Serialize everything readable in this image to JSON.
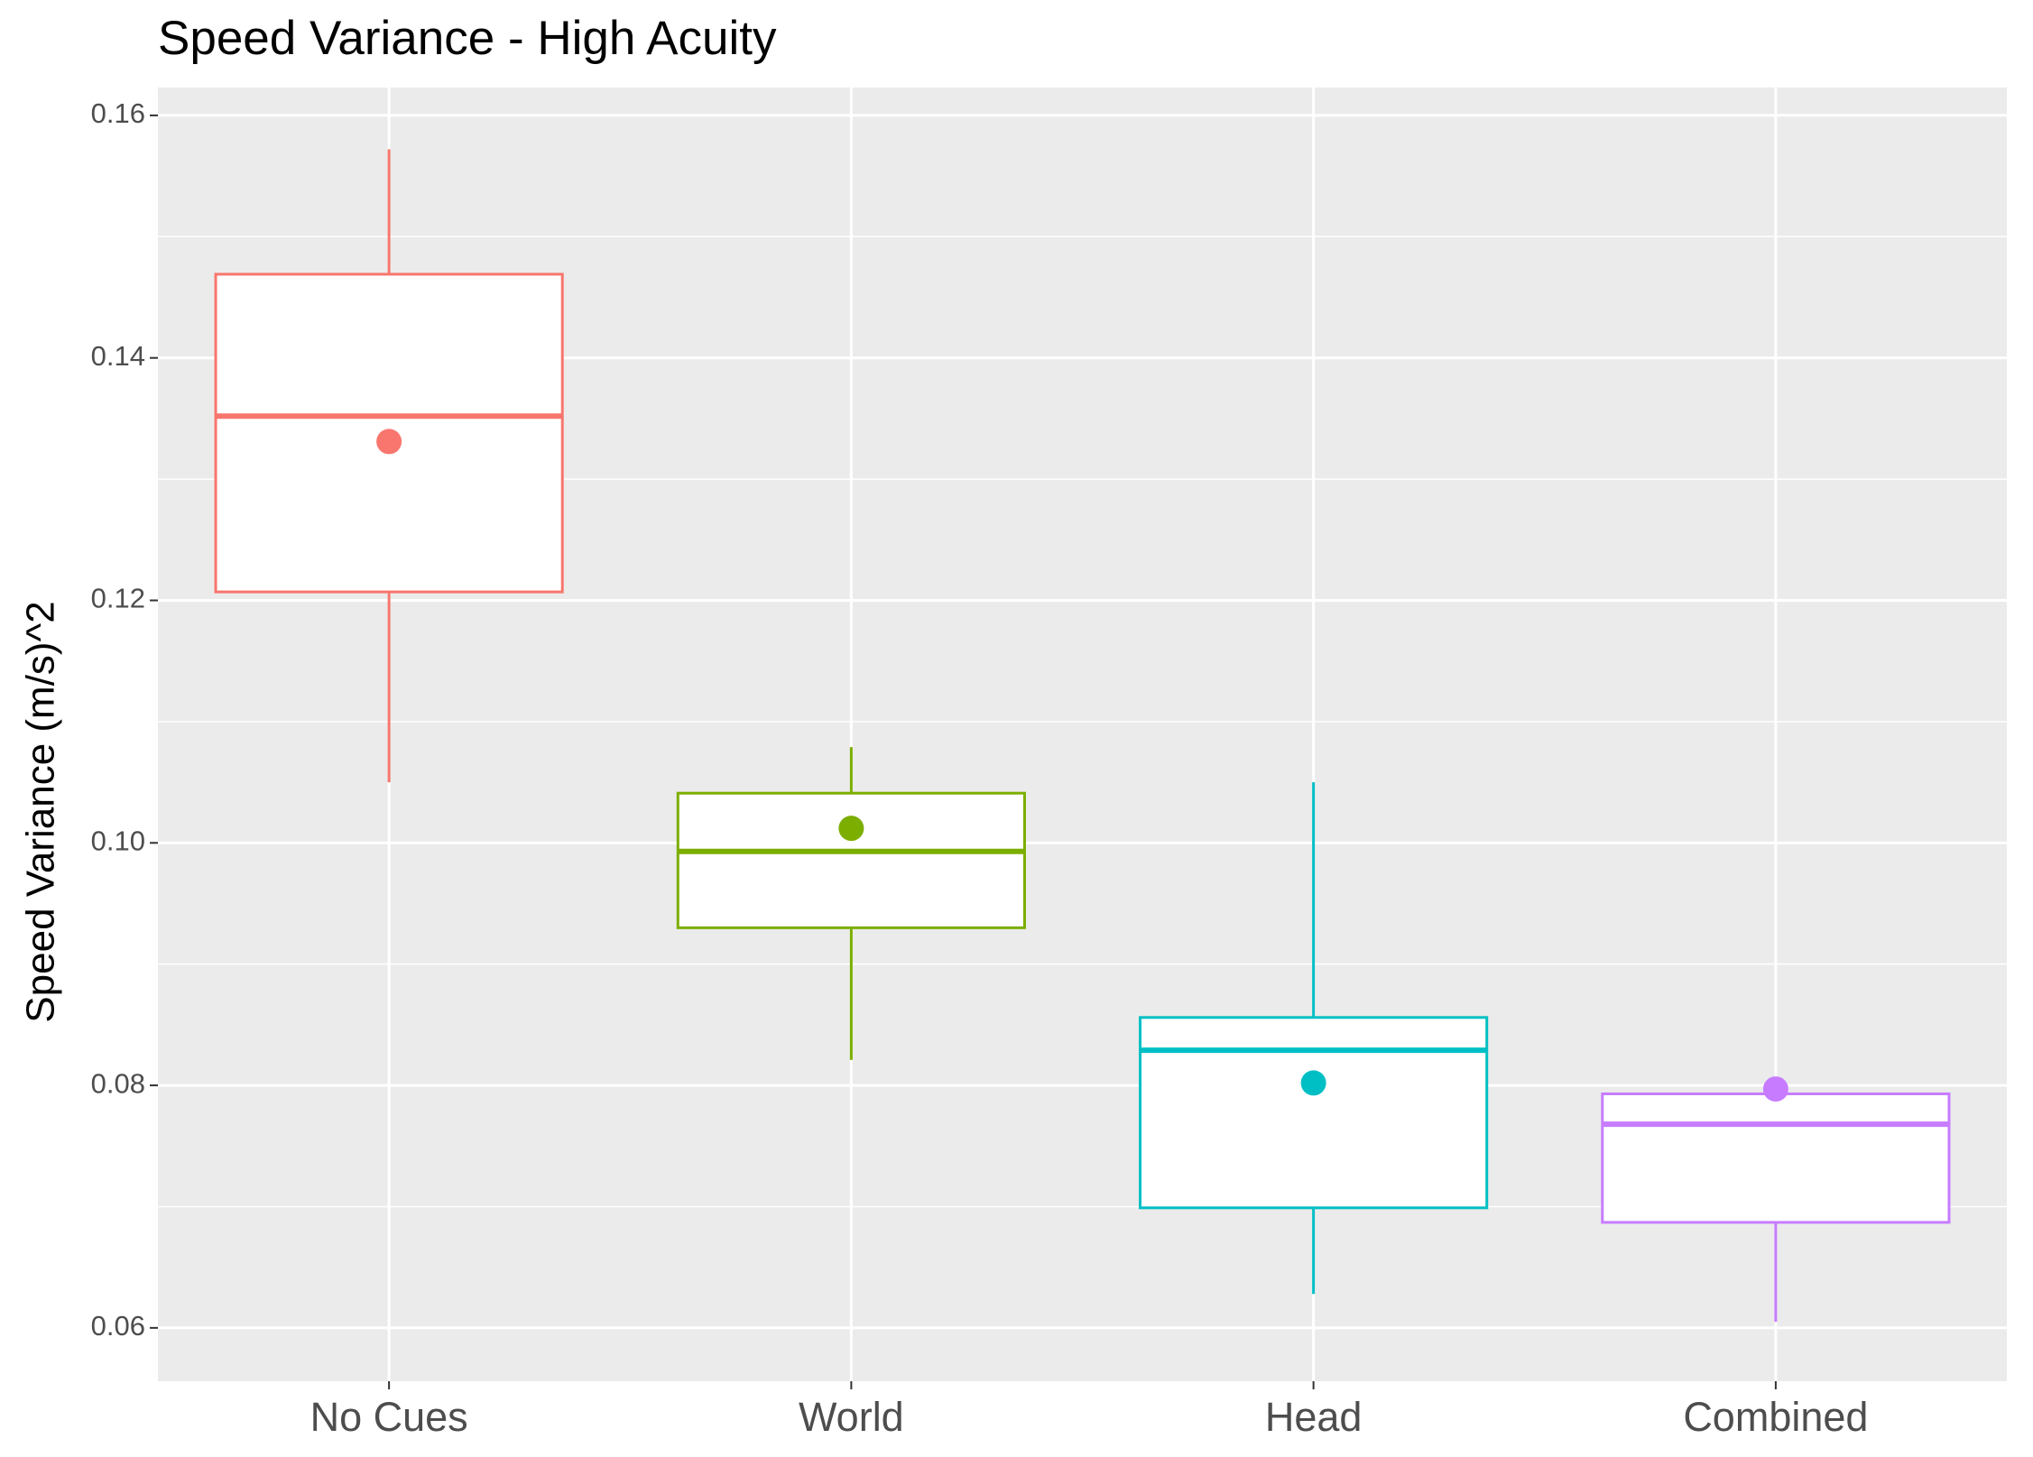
{
  "chart_data": {
    "type": "box",
    "title": "Speed Variance - High Acuity",
    "y_label": "Speed Variance (m/s)^2",
    "categories": [
      "No Cues",
      "World",
      "Head",
      "Combined"
    ],
    "colors": [
      "#f8766d",
      "#7cae00",
      "#00bfc4",
      "#c77cff"
    ],
    "whisker_low": [
      0.105,
      0.0821,
      0.0628,
      0.0605
    ],
    "q1": [
      0.1207,
      0.093,
      0.0699,
      0.0687
    ],
    "median": [
      0.1352,
      0.0993,
      0.0829,
      0.0768
    ],
    "q3": [
      0.1469,
      0.1041,
      0.0856,
      0.0793
    ],
    "whisker_high": [
      0.1572,
      0.1079,
      0.105,
      0.0793
    ],
    "mean": [
      0.1331,
      0.1012,
      0.0802,
      0.0797
    ],
    "ylim": [
      0.0556,
      0.1623
    ],
    "yticks": [
      {
        "value": 0.06,
        "label": "0.06"
      },
      {
        "value": 0.08,
        "label": "0.08"
      },
      {
        "value": 0.1,
        "label": "0.10"
      },
      {
        "value": 0.12,
        "label": "0.12"
      },
      {
        "value": 0.14,
        "label": "0.14"
      },
      {
        "value": 0.16,
        "label": "0.16"
      }
    ],
    "grid": true
  }
}
